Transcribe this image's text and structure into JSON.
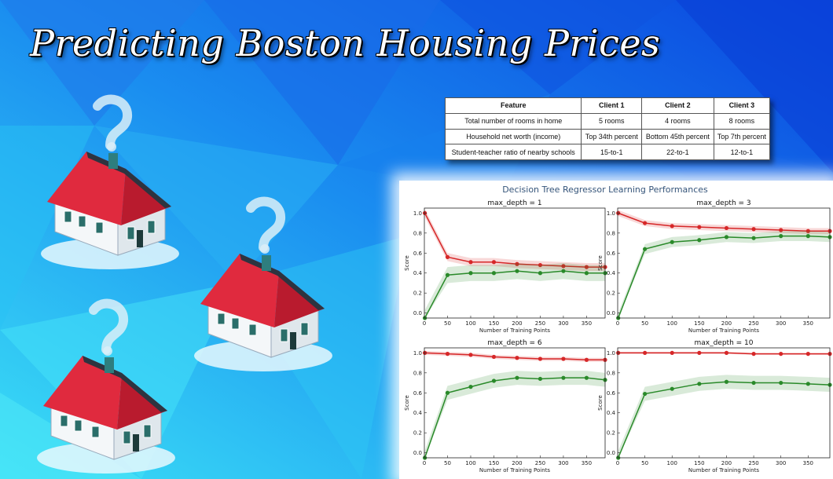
{
  "title": "Predicting Boston Housing Prices",
  "colors": {
    "train": "#d62728",
    "test": "#2a8a2a",
    "bg_light": "#3cd6f5",
    "bg_dark": "#0b4fe0"
  },
  "table": {
    "headers": [
      "Feature",
      "Client 1",
      "Client 2",
      "Client 3"
    ],
    "rows": [
      [
        "Total number of rooms in home",
        "5 rooms",
        "4 rooms",
        "8 rooms"
      ],
      [
        "Household net worth (income)",
        "Top 34th percent",
        "Bottom 45th percent",
        "Top 7th percent"
      ],
      [
        "Student-teacher ratio of nearby schools",
        "15-to-1",
        "22-to-1",
        "12-to-1"
      ]
    ]
  },
  "houses": [
    {
      "icon": "house-with-question-mark-icon"
    },
    {
      "icon": "house-with-question-mark-icon"
    },
    {
      "icon": "house-with-question-mark-icon"
    }
  ],
  "chart_data": {
    "type": "line",
    "suptitle": "Decision Tree Regressor Learning Performances",
    "xlabel": "Number of Training Points",
    "ylabel": "Score",
    "xlim": [
      0,
      390
    ],
    "ylim": [
      -0.05,
      1.05
    ],
    "xticks": [
      0,
      50,
      100,
      150,
      200,
      250,
      300,
      350
    ],
    "yticks": [
      0.0,
      0.2,
      0.4,
      0.6,
      0.8,
      1.0
    ],
    "legend": "none",
    "grid": false,
    "x": [
      1,
      50,
      100,
      150,
      200,
      250,
      300,
      350,
      390
    ],
    "subplots": [
      {
        "title": "max_depth = 1",
        "series": [
          {
            "values": [
              1.0,
              0.56,
              0.51,
              0.51,
              0.49,
              0.48,
              0.47,
              0.46,
              0.46
            ],
            "band": 0.04
          },
          {
            "values": [
              -0.05,
              0.38,
              0.4,
              0.4,
              0.42,
              0.4,
              0.42,
              0.4,
              0.4
            ],
            "band": 0.08
          }
        ]
      },
      {
        "title": "max_depth = 3",
        "series": [
          {
            "values": [
              1.0,
              0.9,
              0.87,
              0.86,
              0.85,
              0.84,
              0.83,
              0.82,
              0.82
            ],
            "band": 0.03
          },
          {
            "values": [
              -0.05,
              0.64,
              0.71,
              0.73,
              0.76,
              0.75,
              0.77,
              0.77,
              0.76
            ],
            "band": 0.05
          }
        ]
      },
      {
        "title": "max_depth = 6",
        "series": [
          {
            "values": [
              1.0,
              0.99,
              0.98,
              0.96,
              0.95,
              0.94,
              0.94,
              0.93,
              0.93
            ],
            "band": 0.02
          },
          {
            "values": [
              -0.05,
              0.6,
              0.66,
              0.72,
              0.75,
              0.74,
              0.75,
              0.75,
              0.73
            ],
            "band": 0.07
          }
        ]
      },
      {
        "title": "max_depth = 10",
        "series": [
          {
            "values": [
              1.0,
              1.0,
              1.0,
              1.0,
              1.0,
              0.99,
              0.99,
              0.99,
              0.99
            ],
            "band": 0.01
          },
          {
            "values": [
              -0.05,
              0.59,
              0.64,
              0.69,
              0.71,
              0.7,
              0.7,
              0.69,
              0.68
            ],
            "band": 0.07
          }
        ]
      }
    ]
  }
}
